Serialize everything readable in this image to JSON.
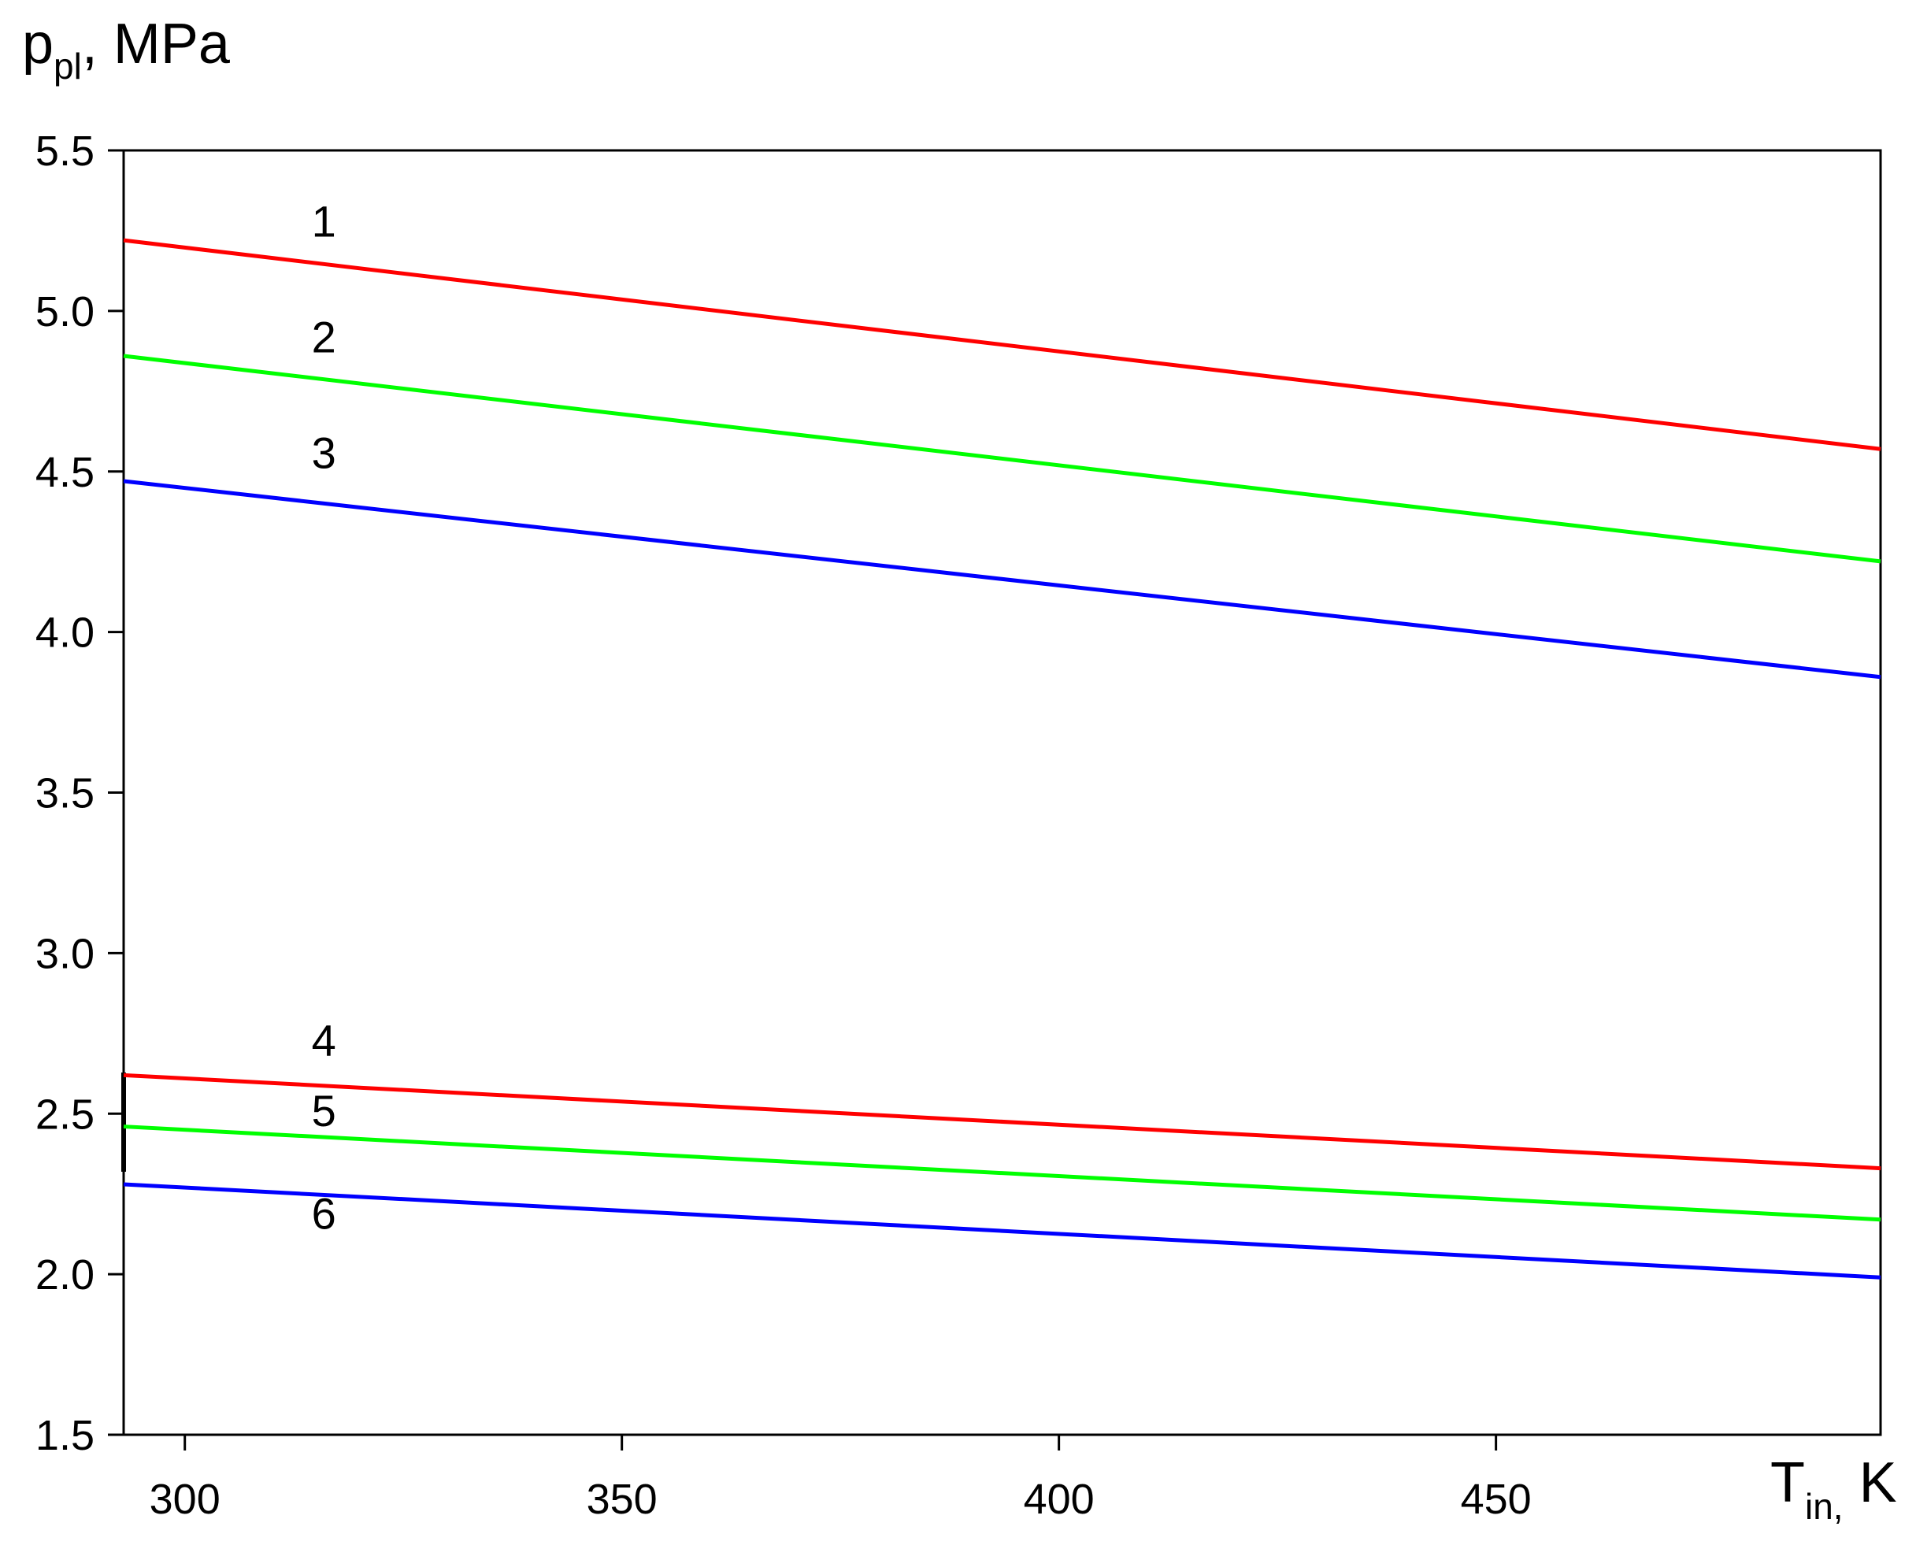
{
  "chart_data": {
    "type": "line",
    "title": "",
    "ylabel": {
      "main": "p",
      "sub": "pl",
      "suffix": ", MPa"
    },
    "xlabel": {
      "main": "T",
      "sub": "in,",
      "suffix": " K"
    },
    "xlim": [
      293,
      494
    ],
    "ylim": [
      1.5,
      5.5
    ],
    "xticks": [
      "300",
      "350",
      "400",
      "450"
    ],
    "xtick_values": [
      300,
      350,
      400,
      450
    ],
    "yticks": [
      "1.5",
      "2.0",
      "2.5",
      "3.0",
      "3.5",
      "4.0",
      "4.5",
      "5.0",
      "5.5"
    ],
    "ytick_values": [
      1.5,
      2.0,
      2.5,
      3.0,
      3.5,
      4.0,
      4.5,
      5.0,
      5.5
    ],
    "grid": false,
    "legend": "inline curve numbers",
    "series": [
      {
        "label": "1",
        "color": "#ff0000",
        "x": [
          293,
          494
        ],
        "y": [
          5.22,
          4.57
        ],
        "label_at": [
          315,
          5.28
        ]
      },
      {
        "label": "2",
        "color": "#00ff00",
        "x": [
          293,
          494
        ],
        "y": [
          4.86,
          4.22
        ],
        "label_at": [
          315,
          4.92
        ]
      },
      {
        "label": "3",
        "color": "#0000ff",
        "x": [
          293,
          494
        ],
        "y": [
          4.47,
          3.86
        ],
        "label_at": [
          315,
          4.56
        ]
      },
      {
        "label": "4",
        "color": "#ff0000",
        "x": [
          293,
          494
        ],
        "y": [
          2.62,
          2.33
        ],
        "label_at": [
          315,
          2.73
        ]
      },
      {
        "label": "5",
        "color": "#00ff00",
        "x": [
          293,
          494
        ],
        "y": [
          2.46,
          2.17
        ],
        "label_at": [
          315,
          2.51
        ]
      },
      {
        "label": "6",
        "color": "#0000ff",
        "x": [
          293,
          494
        ],
        "y": [
          2.28,
          1.99
        ],
        "label_at": [
          315,
          2.19
        ]
      }
    ]
  }
}
